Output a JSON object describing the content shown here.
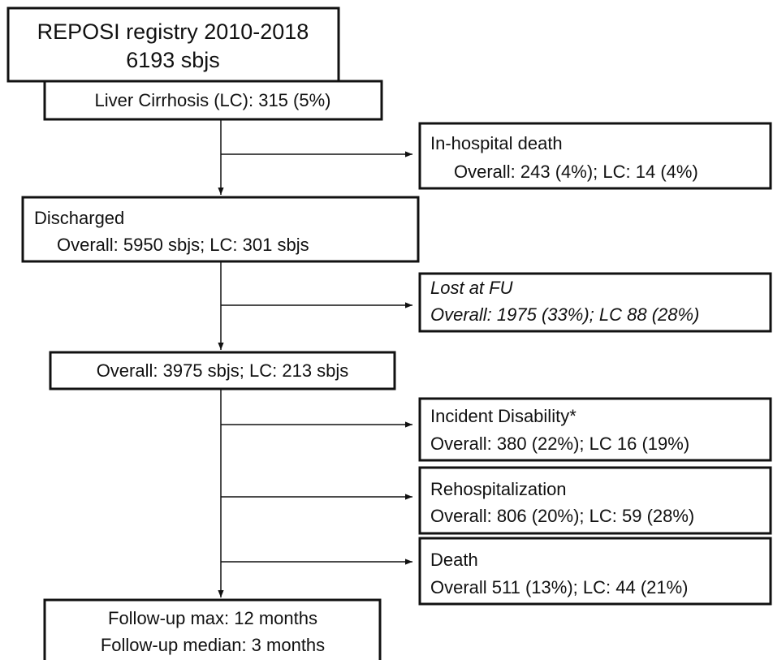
{
  "nodes": [
    {
      "lines": [
        "REPOSI registry 2010-2018",
        "6193 sbjs"
      ]
    },
    {
      "lines": [
        "Liver Cirrhosis (LC): 315 (5%)"
      ]
    },
    {
      "lines": [
        "In-hospital death",
        "Overall: 243 (4%); LC: 14 (4%)"
      ]
    },
    {
      "lines": [
        "Discharged",
        "Overall: 5950 sbjs; LC: 301 sbjs"
      ]
    },
    {
      "lines": [
        "Lost at FU",
        "Overall: 1975 (33%); LC 88 (28%)"
      ]
    },
    {
      "lines": [
        "Overall: 3975 sbjs; LC: 213 sbjs"
      ]
    },
    {
      "lines": [
        "Incident Disability*",
        "Overall: 380 (22%); LC 16 (19%)"
      ]
    },
    {
      "lines": [
        "Rehospitalization",
        "Overall: 806 (20%); LC: 59 (28%)"
      ]
    },
    {
      "lines": [
        "Death",
        "Overall 511 (13%); LC: 44 (21%)"
      ]
    },
    {
      "lines": [
        "Follow-up max: 12 months",
        "Follow-up median: 3 months"
      ]
    }
  ]
}
